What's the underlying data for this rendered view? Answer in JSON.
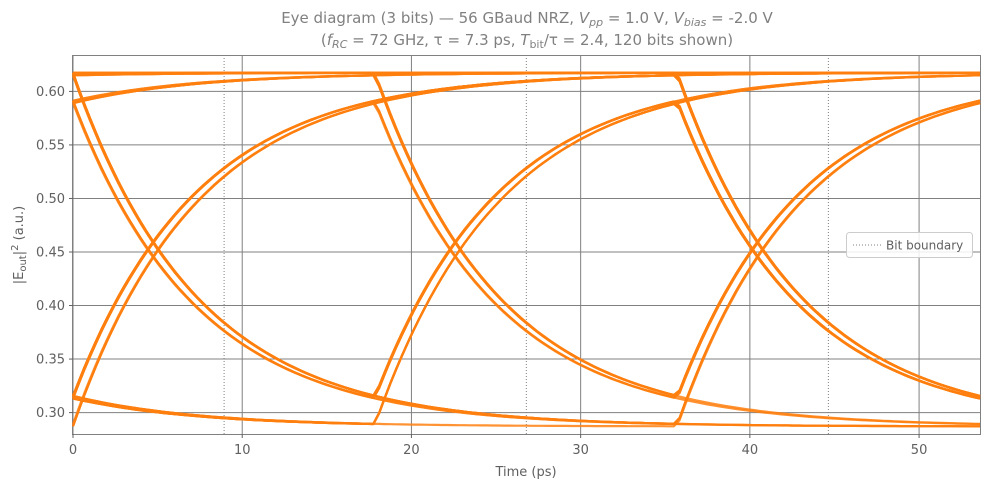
{
  "chart_data": {
    "type": "line",
    "title": "Eye diagram (3 bits) — 56 GBaud NRZ,  Vpp = 1.0 V,  Vbias = -2.0 V",
    "title_parts": {
      "prefix": "Eye diagram (3 bits) — 56 GBaud NRZ,  ",
      "vpp_label": "V",
      "vpp_sub": "pp",
      "vpp_value": " = 1.0 V,  ",
      "vbias_label": "V",
      "vbias_sub": "bias",
      "vbias_value": " = -2.0 V"
    },
    "subtitle": "(fRC = 72 GHz,  τ = 7.3 ps,  Tbit/τ = 2.4,  120 bits shown)",
    "subtitle_parts": {
      "open": "(",
      "f_label": "f",
      "f_sub": "RC",
      "f_value": " = 72 GHz,  τ = 7.3 ps,  ",
      "t_label": "T",
      "t_sub": "bit",
      "t_value": "/τ = 2.4,  120 bits shown)"
    },
    "xlabel": "Time (ps)",
    "ylabel_parts": {
      "pre": "|E",
      "sub": "out",
      "mid": "|",
      "sup": "2",
      "post": " (a.u.)"
    },
    "xlim": [
      0,
      53.6
    ],
    "ylim": [
      0.28,
      0.634
    ],
    "xticks": [
      0,
      10,
      20,
      30,
      40,
      50
    ],
    "yticks": [
      0.3,
      0.35,
      0.4,
      0.45,
      0.5,
      0.55,
      0.6
    ],
    "ytick_labels": [
      "0.30",
      "0.35",
      "0.40",
      "0.45",
      "0.50",
      "0.55",
      "0.60"
    ],
    "grid": true,
    "legend": {
      "placement": "right",
      "entries": [
        "Bit boundary"
      ]
    },
    "bit_boundaries": [
      8.93,
      26.79,
      44.64
    ],
    "colors": {
      "trace": "#ff7f0e",
      "grid": "#808080",
      "boundary": "#808080"
    },
    "levels": {
      "high": 0.6175,
      "low": 0.287
    },
    "model": {
      "baud_GBd": 56,
      "bit_period_ps": 17.86,
      "tau_ps": 7.3,
      "bits_shown": 120
    }
  }
}
